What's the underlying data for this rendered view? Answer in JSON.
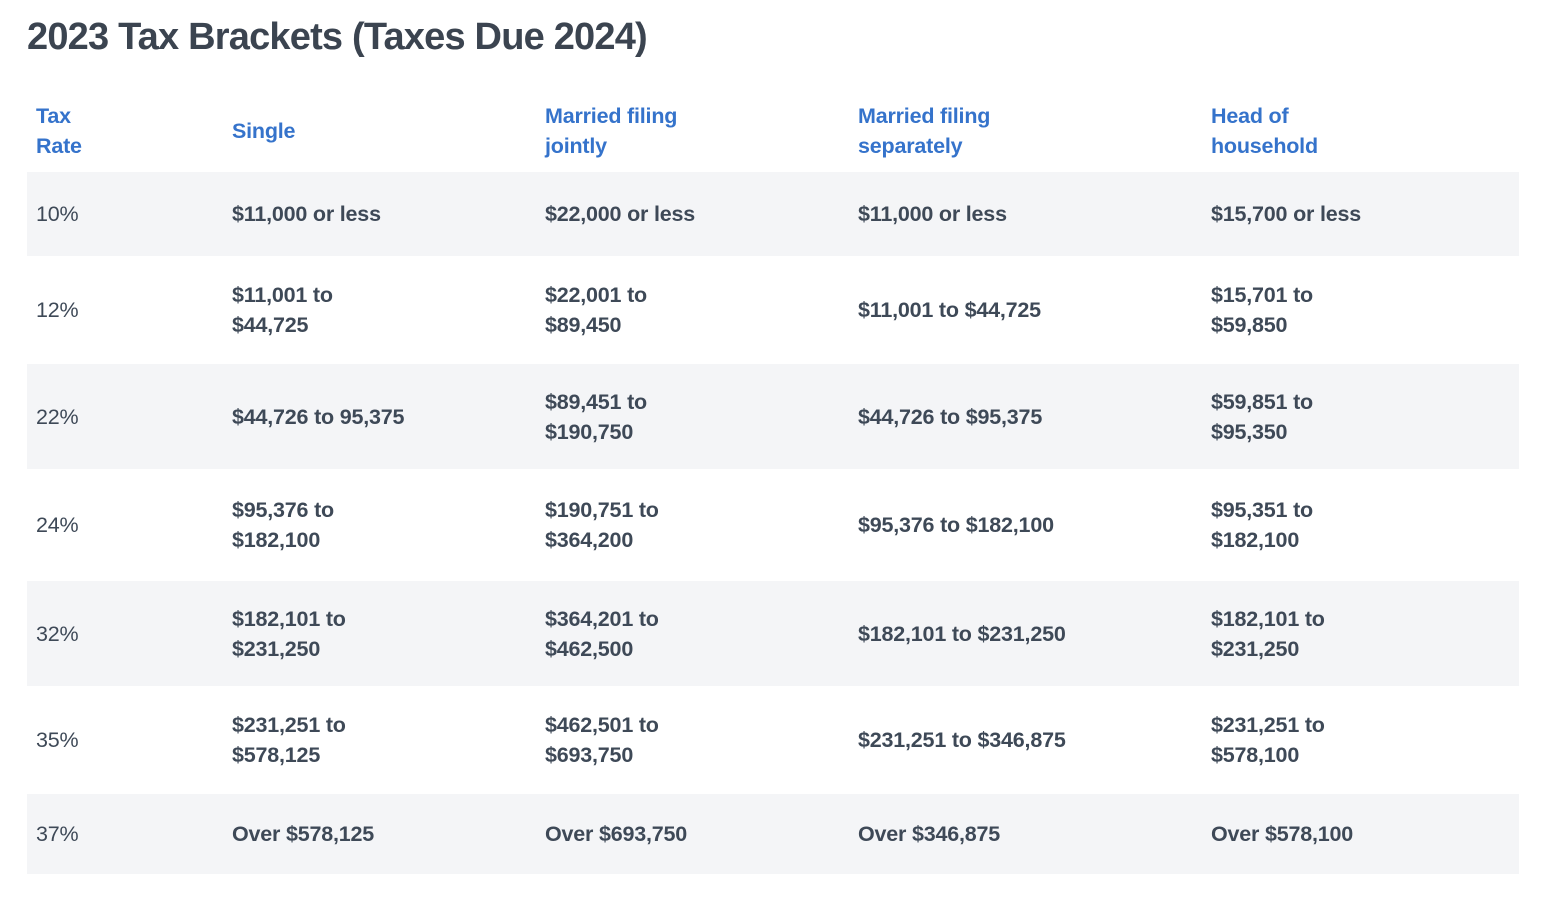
{
  "page": {
    "title": "2023 Tax Brackets (Taxes Due 2024)"
  },
  "colors": {
    "header_link_blue": "#3573cb",
    "title_text": "#3b4450",
    "body_text": "#3e4957",
    "alt_row_bg": "#f4f5f7",
    "page_bg": "#ffffff"
  },
  "table": {
    "columns": [
      {
        "key": "rate",
        "label": "Tax\nRate"
      },
      {
        "key": "single",
        "label": "Single"
      },
      {
        "key": "married_jointly",
        "label": "Married filing\njointly"
      },
      {
        "key": "married_separately",
        "label": "Married filing\nseparately"
      },
      {
        "key": "head_of_household",
        "label": "Head of\nhousehold"
      }
    ],
    "rows": [
      {
        "rate": "10%",
        "single": "$11,000 or less",
        "married_jointly": "$22,000 or less",
        "married_separately": "$11,000 or less",
        "head_of_household": "$15,700 or less"
      },
      {
        "rate": "12%",
        "single": "$11,001 to\n$44,725",
        "married_jointly": "$22,001 to\n$89,450",
        "married_separately": "$11,001 to $44,725",
        "head_of_household": "$15,701 to\n$59,850"
      },
      {
        "rate": "22%",
        "single": "$44,726 to 95,375",
        "married_jointly": "$89,451 to\n$190,750",
        "married_separately": "$44,726 to $95,375",
        "head_of_household": "$59,851 to\n$95,350"
      },
      {
        "rate": "24%",
        "single": "$95,376 to\n$182,100",
        "married_jointly": "$190,751 to\n$364,200",
        "married_separately": "$95,376 to $182,100",
        "head_of_household": "$95,351 to\n$182,100"
      },
      {
        "rate": "32%",
        "single": "$182,101 to\n$231,250",
        "married_jointly": "$364,201 to\n$462,500",
        "married_separately": "$182,101 to $231,250",
        "head_of_household": "$182,101 to\n$231,250"
      },
      {
        "rate": "35%",
        "single": "$231,251 to\n$578,125",
        "married_jointly": "$462,501 to\n$693,750",
        "married_separately": "$231,251 to $346,875",
        "head_of_household": "$231,251 to\n$578,100"
      },
      {
        "rate": "37%",
        "single": "Over $578,125",
        "married_jointly": "Over $693,750",
        "married_separately": "Over $346,875",
        "head_of_household": "Over $578,100"
      }
    ]
  },
  "chart_data": {
    "type": "table",
    "title": "2023 Tax Brackets (Taxes Due 2024)",
    "columns": [
      "Tax Rate",
      "Single",
      "Married filing jointly",
      "Married filing separately",
      "Head of household"
    ],
    "rows": [
      [
        "10%",
        "$11,000 or less",
        "$22,000 or less",
        "$11,000 or less",
        "$15,700 or less"
      ],
      [
        "12%",
        "$11,001 to $44,725",
        "$22,001 to $89,450",
        "$11,001 to $44,725",
        "$15,701 to $59,850"
      ],
      [
        "22%",
        "$44,726 to 95,375",
        "$89,451 to $190,750",
        "$44,726 to $95,375",
        "$59,851 to $95,350"
      ],
      [
        "24%",
        "$95,376 to $182,100",
        "$190,751 to $364,200",
        "$95,376 to $182,100",
        "$95,351 to $182,100"
      ],
      [
        "32%",
        "$182,101 to $231,250",
        "$364,201 to $462,500",
        "$182,101 to $231,250",
        "$182,101 to $231,250"
      ],
      [
        "35%",
        "$231,251 to $578,125",
        "$462,501 to $693,750",
        "$231,251 to $346,875",
        "$231,251 to $578,100"
      ],
      [
        "37%",
        "Over $578,125",
        "Over $693,750",
        "Over $346,875",
        "Over $578,100"
      ]
    ]
  }
}
